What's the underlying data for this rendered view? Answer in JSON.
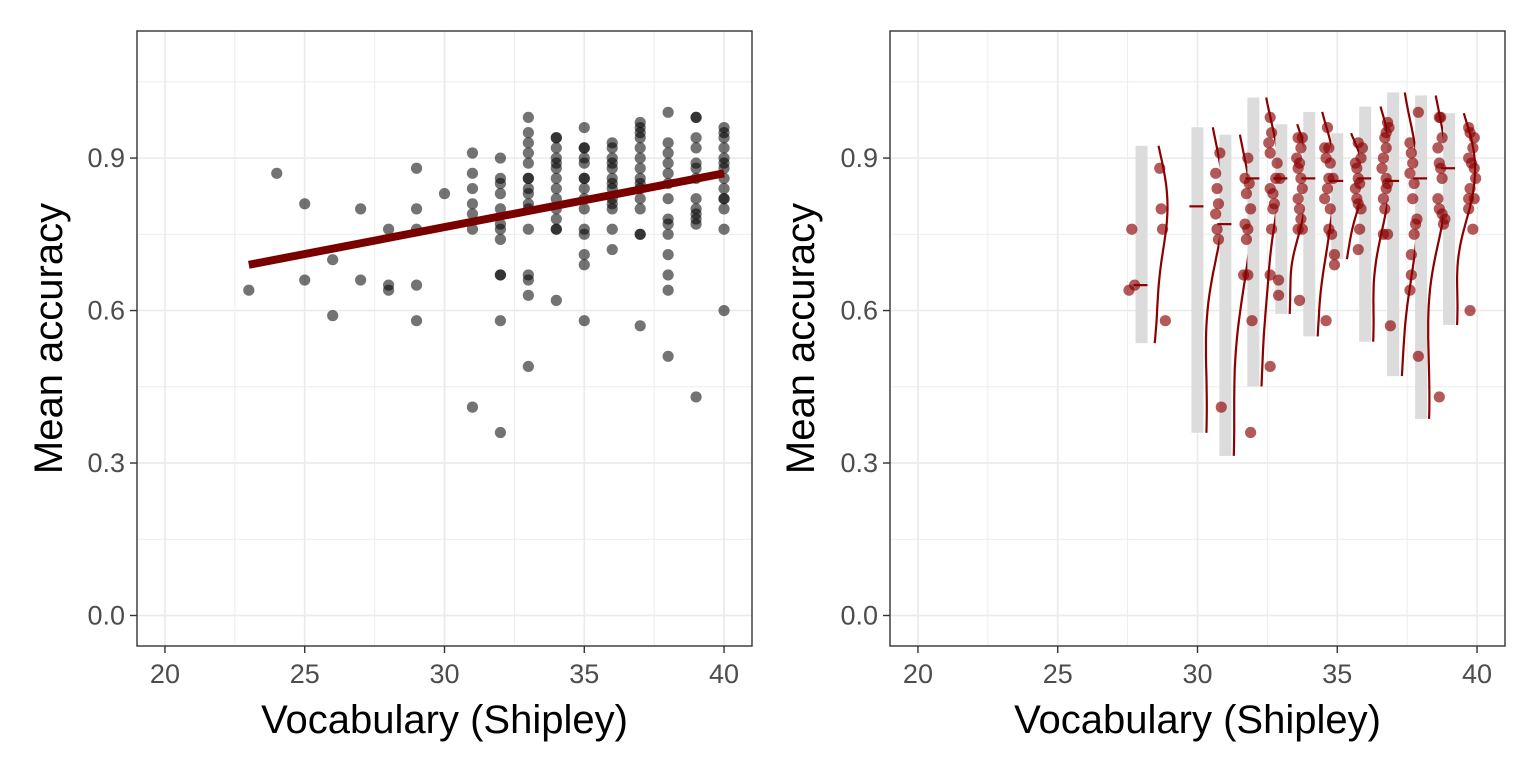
{
  "chart_data": [
    {
      "type": "scatter",
      "title": "",
      "xlabel": "Vocabulary (Shipley)",
      "ylabel": "Mean accuracy",
      "xlim": [
        19,
        41
      ],
      "ylim": [
        -0.06,
        1.15
      ],
      "x_ticks": [
        20,
        25,
        30,
        35,
        40
      ],
      "y_ticks": [
        0.0,
        0.3,
        0.6,
        0.9
      ],
      "y_tick_labels": [
        "0.0",
        "0.3",
        "0.6",
        "0.9"
      ],
      "grid": true,
      "point_color": "#000000",
      "point_opacity": 0.55,
      "points": [
        [
          23,
          0.64
        ],
        [
          24,
          0.87
        ],
        [
          25,
          0.81
        ],
        [
          25,
          0.66
        ],
        [
          26,
          0.7
        ],
        [
          26,
          0.59
        ],
        [
          27,
          0.8
        ],
        [
          27,
          0.66
        ],
        [
          28,
          0.76
        ],
        [
          28,
          0.65
        ],
        [
          28,
          0.64
        ],
        [
          29,
          0.88
        ],
        [
          29,
          0.8
        ],
        [
          29,
          0.76
        ],
        [
          29,
          0.65
        ],
        [
          29,
          0.58
        ],
        [
          30,
          0.83
        ],
        [
          31,
          0.91
        ],
        [
          31,
          0.87
        ],
        [
          31,
          0.84
        ],
        [
          31,
          0.81
        ],
        [
          31,
          0.79
        ],
        [
          31,
          0.76
        ],
        [
          31,
          0.41
        ],
        [
          32,
          0.9
        ],
        [
          32,
          0.86
        ],
        [
          32,
          0.85
        ],
        [
          32,
          0.83
        ],
        [
          32,
          0.8
        ],
        [
          32,
          0.77
        ],
        [
          32,
          0.76
        ],
        [
          32,
          0.74
        ],
        [
          32,
          0.67
        ],
        [
          32,
          0.67
        ],
        [
          32,
          0.58
        ],
        [
          32,
          0.36
        ],
        [
          33,
          0.98
        ],
        [
          33,
          0.95
        ],
        [
          33,
          0.93
        ],
        [
          33,
          0.91
        ],
        [
          33,
          0.89
        ],
        [
          33,
          0.86
        ],
        [
          33,
          0.86
        ],
        [
          33,
          0.84
        ],
        [
          33,
          0.83
        ],
        [
          33,
          0.81
        ],
        [
          33,
          0.8
        ],
        [
          33,
          0.76
        ],
        [
          33,
          0.67
        ],
        [
          33,
          0.66
        ],
        [
          33,
          0.63
        ],
        [
          33,
          0.49
        ],
        [
          34,
          0.94
        ],
        [
          34,
          0.94
        ],
        [
          34,
          0.92
        ],
        [
          34,
          0.9
        ],
        [
          34,
          0.89
        ],
        [
          34,
          0.88
        ],
        [
          34,
          0.86
        ],
        [
          34,
          0.84
        ],
        [
          34,
          0.82
        ],
        [
          34,
          0.8
        ],
        [
          34,
          0.78
        ],
        [
          34,
          0.76
        ],
        [
          34,
          0.76
        ],
        [
          34,
          0.62
        ],
        [
          35,
          0.96
        ],
        [
          35,
          0.92
        ],
        [
          35,
          0.92
        ],
        [
          35,
          0.9
        ],
        [
          35,
          0.89
        ],
        [
          35,
          0.86
        ],
        [
          35,
          0.86
        ],
        [
          35,
          0.84
        ],
        [
          35,
          0.82
        ],
        [
          35,
          0.8
        ],
        [
          35,
          0.76
        ],
        [
          35,
          0.75
        ],
        [
          35,
          0.71
        ],
        [
          35,
          0.69
        ],
        [
          35,
          0.58
        ],
        [
          36,
          0.93
        ],
        [
          36,
          0.92
        ],
        [
          36,
          0.9
        ],
        [
          36,
          0.89
        ],
        [
          36,
          0.88
        ],
        [
          36,
          0.86
        ],
        [
          36,
          0.85
        ],
        [
          36,
          0.84
        ],
        [
          36,
          0.82
        ],
        [
          36,
          0.81
        ],
        [
          36,
          0.8
        ],
        [
          36,
          0.76
        ],
        [
          36,
          0.72
        ],
        [
          37,
          0.97
        ],
        [
          37,
          0.96
        ],
        [
          37,
          0.95
        ],
        [
          37,
          0.94
        ],
        [
          37,
          0.92
        ],
        [
          37,
          0.9
        ],
        [
          37,
          0.88
        ],
        [
          37,
          0.86
        ],
        [
          37,
          0.85
        ],
        [
          37,
          0.84
        ],
        [
          37,
          0.82
        ],
        [
          37,
          0.8
        ],
        [
          37,
          0.75
        ],
        [
          37,
          0.75
        ],
        [
          37,
          0.57
        ],
        [
          38,
          0.99
        ],
        [
          38,
          0.93
        ],
        [
          38,
          0.91
        ],
        [
          38,
          0.89
        ],
        [
          38,
          0.87
        ],
        [
          38,
          0.85
        ],
        [
          38,
          0.82
        ],
        [
          38,
          0.78
        ],
        [
          38,
          0.77
        ],
        [
          38,
          0.75
        ],
        [
          38,
          0.71
        ],
        [
          38,
          0.67
        ],
        [
          38,
          0.64
        ],
        [
          38,
          0.51
        ],
        [
          39,
          0.98
        ],
        [
          39,
          0.98
        ],
        [
          39,
          0.94
        ],
        [
          39,
          0.92
        ],
        [
          39,
          0.89
        ],
        [
          39,
          0.88
        ],
        [
          39,
          0.86
        ],
        [
          39,
          0.82
        ],
        [
          39,
          0.8
        ],
        [
          39,
          0.79
        ],
        [
          39,
          0.78
        ],
        [
          39,
          0.77
        ],
        [
          39,
          0.43
        ],
        [
          40,
          0.96
        ],
        [
          40,
          0.95
        ],
        [
          40,
          0.94
        ],
        [
          40,
          0.92
        ],
        [
          40,
          0.9
        ],
        [
          40,
          0.89
        ],
        [
          40,
          0.88
        ],
        [
          40,
          0.86
        ],
        [
          40,
          0.84
        ],
        [
          40,
          0.82
        ],
        [
          40,
          0.82
        ],
        [
          40,
          0.8
        ],
        [
          40,
          0.76
        ],
        [
          40,
          0.6
        ]
      ],
      "trend_line": {
        "color": "#7a0000",
        "x": [
          23,
          40
        ],
        "y": [
          0.69,
          0.87
        ]
      }
    },
    {
      "type": "scatter",
      "title": "",
      "xlabel": "Vocabulary (Shipley)",
      "ylabel": "Mean accuracy",
      "xlim": [
        19,
        41
      ],
      "ylim": [
        -0.06,
        1.15
      ],
      "x_ticks": [
        20,
        25,
        30,
        35,
        40
      ],
      "y_ticks": [
        0.0,
        0.3,
        0.6,
        0.9
      ],
      "y_tick_labels": [
        "0.0",
        "0.3",
        "0.6",
        "0.9"
      ],
      "grid": true,
      "point_color": "#8b0000",
      "point_opacity": 0.65,
      "points": [
        [
          27.65,
          0.76
        ],
        [
          27.55,
          0.64
        ],
        [
          27.75,
          0.65
        ],
        [
          28.65,
          0.88
        ],
        [
          28.7,
          0.8
        ],
        [
          28.75,
          0.76
        ],
        [
          28.85,
          0.58
        ],
        [
          30.8,
          0.91
        ],
        [
          30.65,
          0.87
        ],
        [
          30.7,
          0.84
        ],
        [
          30.75,
          0.81
        ],
        [
          30.65,
          0.79
        ],
        [
          30.7,
          0.76
        ],
        [
          30.75,
          0.74
        ],
        [
          30.85,
          0.41
        ],
        [
          31.8,
          0.9
        ],
        [
          31.7,
          0.86
        ],
        [
          31.85,
          0.85
        ],
        [
          31.75,
          0.83
        ],
        [
          31.9,
          0.8
        ],
        [
          31.7,
          0.77
        ],
        [
          31.8,
          0.76
        ],
        [
          31.75,
          0.74
        ],
        [
          31.65,
          0.67
        ],
        [
          31.8,
          0.67
        ],
        [
          31.95,
          0.58
        ],
        [
          31.9,
          0.36
        ],
        [
          32.6,
          0.98
        ],
        [
          32.65,
          0.95
        ],
        [
          32.55,
          0.93
        ],
        [
          32.6,
          0.91
        ],
        [
          32.85,
          0.89
        ],
        [
          32.95,
          0.86
        ],
        [
          32.8,
          0.86
        ],
        [
          32.6,
          0.84
        ],
        [
          32.7,
          0.83
        ],
        [
          32.75,
          0.81
        ],
        [
          32.7,
          0.8
        ],
        [
          32.65,
          0.76
        ],
        [
          32.6,
          0.67
        ],
        [
          32.9,
          0.66
        ],
        [
          32.9,
          0.63
        ],
        [
          32.6,
          0.49
        ],
        [
          33.6,
          0.94
        ],
        [
          33.75,
          0.94
        ],
        [
          33.7,
          0.92
        ],
        [
          33.55,
          0.9
        ],
        [
          33.65,
          0.89
        ],
        [
          33.6,
          0.88
        ],
        [
          33.7,
          0.86
        ],
        [
          33.75,
          0.84
        ],
        [
          33.6,
          0.82
        ],
        [
          33.65,
          0.8
        ],
        [
          33.7,
          0.78
        ],
        [
          33.6,
          0.76
        ],
        [
          33.75,
          0.76
        ],
        [
          33.65,
          0.62
        ],
        [
          34.65,
          0.96
        ],
        [
          34.7,
          0.92
        ],
        [
          34.55,
          0.92
        ],
        [
          34.6,
          0.9
        ],
        [
          34.75,
          0.89
        ],
        [
          34.7,
          0.86
        ],
        [
          34.85,
          0.86
        ],
        [
          34.65,
          0.84
        ],
        [
          34.55,
          0.82
        ],
        [
          34.75,
          0.8
        ],
        [
          34.7,
          0.76
        ],
        [
          34.8,
          0.75
        ],
        [
          34.9,
          0.71
        ],
        [
          34.9,
          0.69
        ],
        [
          34.6,
          0.58
        ],
        [
          35.75,
          0.93
        ],
        [
          35.9,
          0.92
        ],
        [
          35.85,
          0.9
        ],
        [
          35.65,
          0.89
        ],
        [
          35.7,
          0.88
        ],
        [
          35.75,
          0.86
        ],
        [
          35.8,
          0.85
        ],
        [
          35.65,
          0.84
        ],
        [
          35.7,
          0.82
        ],
        [
          35.75,
          0.81
        ],
        [
          35.85,
          0.8
        ],
        [
          35.8,
          0.76
        ],
        [
          35.75,
          0.72
        ],
        [
          36.8,
          0.97
        ],
        [
          36.85,
          0.96
        ],
        [
          36.75,
          0.95
        ],
        [
          36.7,
          0.94
        ],
        [
          36.75,
          0.92
        ],
        [
          36.65,
          0.9
        ],
        [
          36.6,
          0.88
        ],
        [
          36.75,
          0.86
        ],
        [
          36.8,
          0.85
        ],
        [
          36.75,
          0.84
        ],
        [
          36.65,
          0.82
        ],
        [
          36.7,
          0.8
        ],
        [
          36.65,
          0.75
        ],
        [
          36.8,
          0.75
        ],
        [
          36.9,
          0.57
        ],
        [
          37.9,
          0.99
        ],
        [
          37.6,
          0.93
        ],
        [
          37.65,
          0.91
        ],
        [
          37.7,
          0.89
        ],
        [
          37.6,
          0.87
        ],
        [
          37.75,
          0.85
        ],
        [
          37.7,
          0.82
        ],
        [
          37.85,
          0.78
        ],
        [
          37.8,
          0.77
        ],
        [
          37.75,
          0.75
        ],
        [
          37.65,
          0.71
        ],
        [
          37.65,
          0.67
        ],
        [
          37.6,
          0.64
        ],
        [
          37.9,
          0.51
        ],
        [
          38.65,
          0.98
        ],
        [
          38.7,
          0.98
        ],
        [
          38.75,
          0.94
        ],
        [
          38.6,
          0.92
        ],
        [
          38.65,
          0.89
        ],
        [
          38.7,
          0.88
        ],
        [
          38.75,
          0.86
        ],
        [
          38.6,
          0.82
        ],
        [
          38.65,
          0.8
        ],
        [
          38.75,
          0.79
        ],
        [
          38.85,
          0.78
        ],
        [
          38.8,
          0.77
        ],
        [
          38.65,
          0.43
        ],
        [
          39.7,
          0.96
        ],
        [
          39.75,
          0.95
        ],
        [
          39.9,
          0.94
        ],
        [
          39.85,
          0.92
        ],
        [
          39.7,
          0.9
        ],
        [
          39.8,
          0.89
        ],
        [
          39.9,
          0.88
        ],
        [
          39.95,
          0.86
        ],
        [
          39.75,
          0.84
        ],
        [
          39.7,
          0.82
        ],
        [
          39.9,
          0.82
        ],
        [
          39.7,
          0.8
        ],
        [
          39.85,
          0.76
        ],
        [
          39.75,
          0.6
        ]
      ],
      "violin_color": "#8b0000",
      "violin_fill": "#dcdcdc",
      "groups": [
        {
          "x": 29,
          "median": 0.65
        },
        {
          "x": 31,
          "median": 0.805
        },
        {
          "x": 32,
          "median": 0.77
        },
        {
          "x": 33,
          "median": 0.86
        },
        {
          "x": 34,
          "median": 0.86
        },
        {
          "x": 35,
          "median": 0.86
        },
        {
          "x": 36,
          "median": 0.855
        },
        {
          "x": 37,
          "median": 0.86
        },
        {
          "x": 38,
          "median": 0.855
        },
        {
          "x": 39,
          "median": 0.86
        },
        {
          "x": 40,
          "median": 0.88
        }
      ]
    }
  ]
}
